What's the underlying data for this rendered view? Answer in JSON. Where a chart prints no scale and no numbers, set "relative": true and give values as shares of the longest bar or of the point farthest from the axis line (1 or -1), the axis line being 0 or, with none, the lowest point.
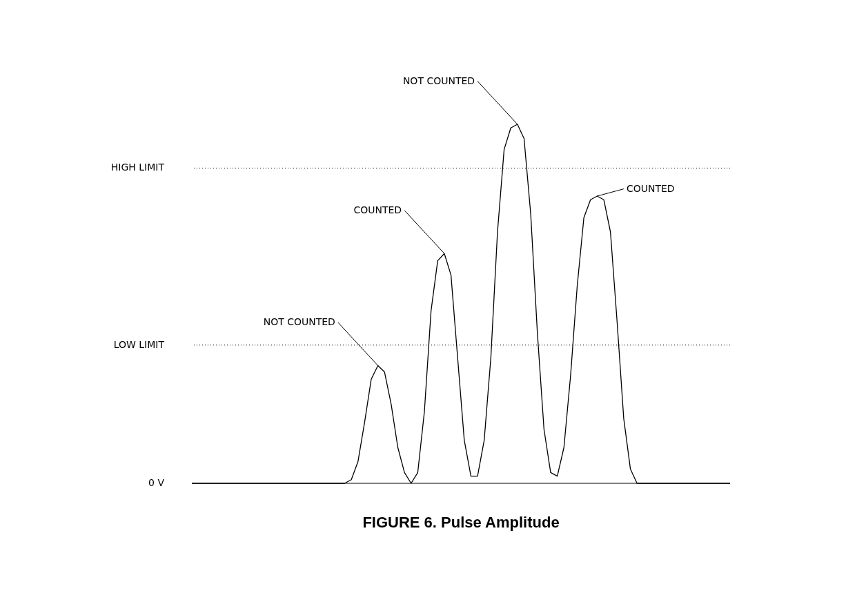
{
  "chart_data": {
    "type": "line",
    "relative": true,
    "title": "FIGURE 6.  Pulse Amplitude",
    "categories": [
      null,
      null,
      null,
      null,
      null,
      null,
      null,
      null,
      null,
      null,
      null,
      null,
      null,
      null,
      null,
      null,
      null,
      null,
      null,
      null,
      null,
      null,
      null,
      null,
      null,
      null,
      null,
      null,
      null,
      null,
      null,
      null,
      null,
      null,
      null,
      null,
      null,
      null,
      null,
      null,
      null,
      null,
      null,
      null,
      null,
      null,
      null,
      null,
      null,
      null,
      null,
      null,
      null,
      null,
      null,
      null,
      null,
      null,
      null,
      null,
      null,
      null,
      null,
      null,
      null,
      null,
      null,
      null,
      null,
      null,
      null,
      null,
      null,
      null,
      null,
      null,
      null,
      null,
      null,
      null,
      null,
      null
    ],
    "series": [
      {
        "color": "#000000",
        "values": [
          0,
          0,
          0,
          0,
          0,
          0,
          0,
          0,
          0,
          0,
          0,
          0,
          0,
          0,
          0,
          0,
          0,
          0,
          0,
          0,
          0,
          0,
          0,
          0,
          0.01,
          0.06,
          0.17,
          0.29,
          0.328,
          0.31,
          0.22,
          0.1,
          0.03,
          0,
          0.03,
          0.2,
          0.48,
          0.62,
          0.64,
          0.58,
          0.35,
          0.12,
          0.02,
          0.02,
          0.12,
          0.35,
          0.7,
          0.93,
          0.99,
          1.0,
          0.96,
          0.75,
          0.42,
          0.15,
          0.03,
          0.02,
          0.1,
          0.3,
          0.55,
          0.74,
          0.79,
          0.8,
          0.79,
          0.7,
          0.45,
          0.18,
          0.04,
          0,
          0,
          0,
          0,
          0,
          0,
          0,
          0,
          0,
          0,
          0,
          0,
          0,
          0,
          0
        ]
      }
    ],
    "ref_lines": [
      {
        "axis": "y",
        "value": 0,
        "label": "0 V",
        "line_style": "solid"
      },
      {
        "axis": "y",
        "value": 0.385,
        "label": "LOW LIMIT",
        "line_style": "dotted"
      },
      {
        "axis": "y",
        "value": 0.878,
        "label": "HIGH LIMIT",
        "line_style": "dotted"
      }
    ],
    "annotations": [
      "NOT COUNTED",
      "COUNTED",
      "NOT COUNTED",
      "COUNTED"
    ],
    "marker": "none",
    "line_style": "solid"
  }
}
